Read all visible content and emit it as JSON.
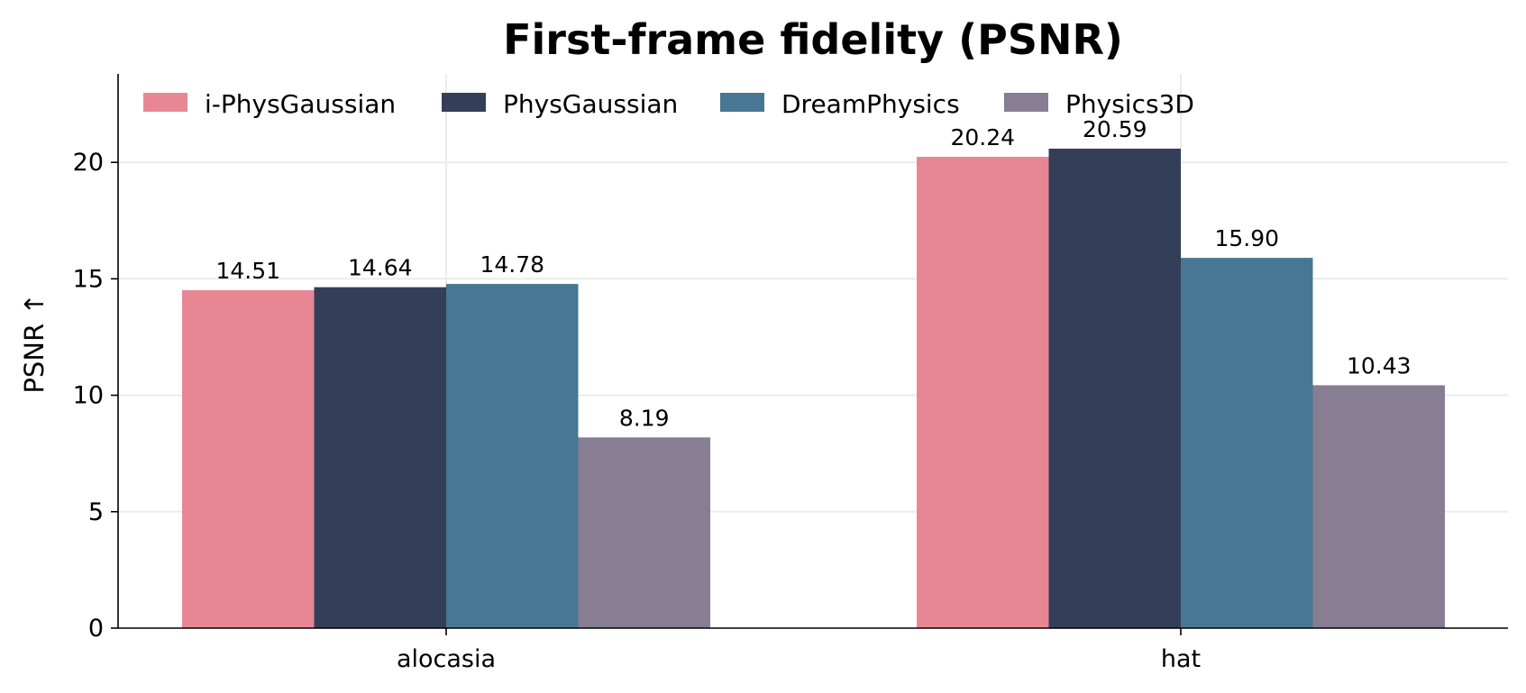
{
  "chart_data": {
    "type": "bar",
    "title": "First-frame fidelity (PSNR)",
    "xlabel": "",
    "ylabel": "PSNR ↑",
    "categories": [
      "alocasia",
      "hat"
    ],
    "series": [
      {
        "name": "i-PhysGaussian",
        "values": [
          14.51,
          20.24
        ],
        "color": "#E88794"
      },
      {
        "name": "PhysGaussian",
        "values": [
          14.64,
          20.59
        ],
        "color": "#333F58"
      },
      {
        "name": "DreamPhysics",
        "values": [
          14.78,
          15.9
        ],
        "color": "#487793"
      },
      {
        "name": "Physics3D",
        "values": [
          8.19,
          10.43
        ],
        "color": "#877E94"
      }
    ],
    "value_labels": [
      [
        "14.51",
        "20.24"
      ],
      [
        "14.64",
        "20.59"
      ],
      [
        "14.78",
        "15.90"
      ],
      [
        "8.19",
        "10.43"
      ]
    ],
    "ylim": [
      0,
      23.8
    ],
    "yticks": [
      0,
      5,
      10,
      15,
      20
    ],
    "ytick_labels": [
      "0",
      "5",
      "10",
      "15",
      "20"
    ],
    "grid": true,
    "legend_position": "top-left"
  }
}
